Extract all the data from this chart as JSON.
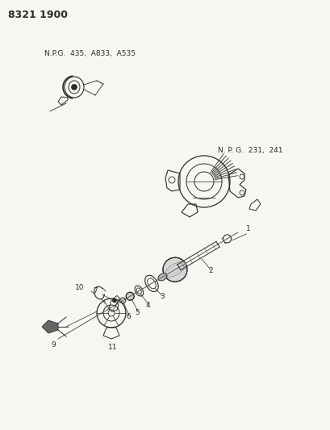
{
  "title": "8321 1900",
  "bg": "#f7f6f0",
  "ink": "#2a2a2a",
  "npg1": "N.P.G.  435,  A833,  A535",
  "npg2": "N. P. G.  231,  241",
  "figsize": [
    4.1,
    5.33
  ],
  "dpi": 100
}
